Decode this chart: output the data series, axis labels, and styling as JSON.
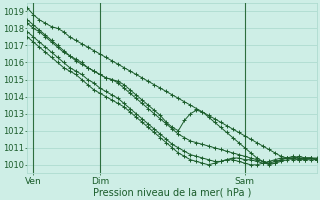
{
  "bg_color": "#ceeee6",
  "grid_color": "#a8d8cc",
  "line_color": "#1a5c2a",
  "ylabel_values": [
    1010,
    1011,
    1012,
    1013,
    1014,
    1015,
    1016,
    1017,
    1018,
    1019
  ],
  "xlim": [
    0,
    96
  ],
  "ylim": [
    1009.5,
    1019.5
  ],
  "xlabel": "Pression niveau de la mer( hPa )",
  "xtick_positions": [
    2,
    24,
    72
  ],
  "xtick_labels": [
    "Ven",
    "Dim",
    "Sam"
  ],
  "vline_positions": [
    2,
    24,
    72
  ],
  "series": [
    {
      "x": [
        0,
        2,
        4,
        6,
        8,
        10,
        12,
        14,
        16,
        18,
        20,
        22,
        24,
        26,
        28,
        30,
        32,
        34,
        36,
        38,
        40,
        42,
        44,
        46,
        48,
        50,
        52,
        54,
        56,
        58,
        60,
        62,
        64,
        66,
        68,
        70,
        72,
        74,
        76,
        78,
        80,
        82,
        84,
        86,
        88,
        90,
        92,
        94,
        96
      ],
      "y": [
        1019.2,
        1018.8,
        1018.5,
        1018.3,
        1018.1,
        1018.0,
        1017.8,
        1017.5,
        1017.3,
        1017.1,
        1016.9,
        1016.7,
        1016.5,
        1016.3,
        1016.1,
        1015.9,
        1015.7,
        1015.5,
        1015.3,
        1015.1,
        1014.9,
        1014.7,
        1014.5,
        1014.3,
        1014.1,
        1013.9,
        1013.7,
        1013.5,
        1013.3,
        1013.1,
        1012.9,
        1012.7,
        1012.5,
        1012.3,
        1012.1,
        1011.9,
        1011.7,
        1011.5,
        1011.3,
        1011.1,
        1010.9,
        1010.7,
        1010.5,
        1010.4,
        1010.4,
        1010.5,
        1010.4,
        1010.4,
        1010.3
      ]
    },
    {
      "x": [
        0,
        2,
        4,
        6,
        8,
        10,
        12,
        14,
        16,
        18,
        20,
        22,
        24,
        26,
        28,
        30,
        32,
        34,
        36,
        38,
        40,
        42,
        44,
        46,
        48,
        50,
        52,
        54,
        56,
        58,
        60,
        62,
        64,
        66,
        68,
        70,
        72,
        74,
        76,
        78,
        80,
        82,
        84,
        86,
        88,
        90,
        92,
        94,
        96
      ],
      "y": [
        1018.3,
        1018.0,
        1017.8,
        1017.5,
        1017.2,
        1016.9,
        1016.6,
        1016.4,
        1016.2,
        1016.0,
        1015.7,
        1015.5,
        1015.3,
        1015.1,
        1015.0,
        1014.9,
        1014.7,
        1014.4,
        1014.1,
        1013.8,
        1013.5,
        1013.2,
        1012.9,
        1012.5,
        1012.2,
        1012.0,
        1012.6,
        1013.0,
        1013.2,
        1013.1,
        1012.8,
        1012.5,
        1012.2,
        1011.9,
        1011.6,
        1011.3,
        1011.0,
        1010.7,
        1010.4,
        1010.2,
        1010.0,
        1010.1,
        1010.3,
        1010.4,
        1010.5,
        1010.4,
        1010.4,
        1010.4,
        1010.3
      ]
    },
    {
      "x": [
        0,
        2,
        4,
        6,
        8,
        10,
        12,
        14,
        16,
        18,
        20,
        22,
        24,
        26,
        28,
        30,
        32,
        34,
        36,
        38,
        40,
        42,
        44,
        46,
        48,
        50,
        52,
        54,
        56,
        58,
        60,
        62,
        64,
        66,
        68,
        70,
        72,
        74,
        76,
        78,
        80,
        82,
        84,
        86,
        88,
        90,
        92,
        94,
        96
      ],
      "y": [
        1018.5,
        1018.2,
        1017.9,
        1017.6,
        1017.3,
        1017.0,
        1016.7,
        1016.4,
        1016.1,
        1015.9,
        1015.7,
        1015.5,
        1015.3,
        1015.1,
        1015.0,
        1014.8,
        1014.5,
        1014.2,
        1013.9,
        1013.6,
        1013.3,
        1013.0,
        1012.7,
        1012.4,
        1012.1,
        1011.8,
        1011.6,
        1011.4,
        1011.3,
        1011.2,
        1011.1,
        1011.0,
        1010.9,
        1010.8,
        1010.7,
        1010.6,
        1010.5,
        1010.4,
        1010.3,
        1010.2,
        1010.1,
        1010.1,
        1010.2,
        1010.3,
        1010.4,
        1010.4,
        1010.3,
        1010.3,
        1010.3
      ]
    },
    {
      "x": [
        0,
        2,
        4,
        6,
        8,
        10,
        12,
        14,
        16,
        18,
        20,
        22,
        24,
        26,
        28,
        30,
        32,
        34,
        36,
        38,
        40,
        42,
        44,
        46,
        48,
        50,
        52,
        54,
        56,
        58,
        60,
        62,
        64,
        66,
        68,
        70,
        72,
        74,
        76,
        78,
        80,
        82,
        84,
        86,
        88,
        90,
        92,
        94,
        96
      ],
      "y": [
        1017.8,
        1017.5,
        1017.2,
        1016.9,
        1016.6,
        1016.3,
        1016.0,
        1015.7,
        1015.5,
        1015.3,
        1015.0,
        1014.8,
        1014.5,
        1014.3,
        1014.1,
        1013.9,
        1013.6,
        1013.3,
        1013.0,
        1012.7,
        1012.4,
        1012.1,
        1011.8,
        1011.5,
        1011.2,
        1011.0,
        1010.8,
        1010.6,
        1010.5,
        1010.4,
        1010.3,
        1010.2,
        1010.2,
        1010.3,
        1010.4,
        1010.4,
        1010.3,
        1010.3,
        1010.2,
        1010.1,
        1010.1,
        1010.2,
        1010.3,
        1010.4,
        1010.4,
        1010.3,
        1010.3,
        1010.4,
        1010.4
      ]
    },
    {
      "x": [
        0,
        2,
        4,
        6,
        8,
        10,
        12,
        14,
        16,
        18,
        20,
        22,
        24,
        26,
        28,
        30,
        32,
        34,
        36,
        38,
        40,
        42,
        44,
        46,
        48,
        50,
        52,
        54,
        56,
        58,
        60,
        62,
        64,
        66,
        68,
        70,
        72,
        74,
        76,
        78,
        80,
        82,
        84,
        86,
        88,
        90,
        92,
        94,
        96
      ],
      "y": [
        1017.5,
        1017.2,
        1016.9,
        1016.6,
        1016.3,
        1016.0,
        1015.7,
        1015.5,
        1015.3,
        1015.0,
        1014.7,
        1014.4,
        1014.2,
        1014.0,
        1013.8,
        1013.6,
        1013.4,
        1013.1,
        1012.8,
        1012.5,
        1012.2,
        1011.9,
        1011.6,
        1011.3,
        1011.0,
        1010.7,
        1010.5,
        1010.3,
        1010.2,
        1010.1,
        1010.0,
        1010.1,
        1010.2,
        1010.3,
        1010.3,
        1010.2,
        1010.1,
        1010.0,
        1010.0,
        1010.1,
        1010.2,
        1010.3,
        1010.4,
        1010.4,
        1010.3,
        1010.3,
        1010.4,
        1010.4,
        1010.3
      ]
    }
  ]
}
